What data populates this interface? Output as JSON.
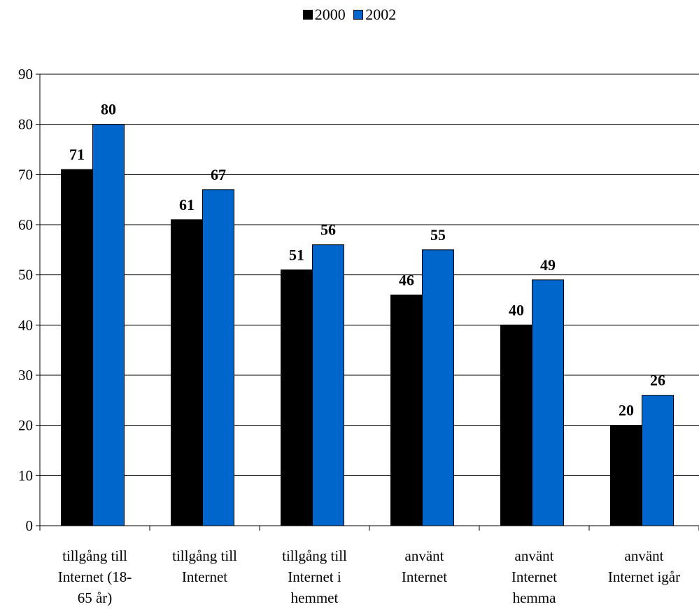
{
  "chart_data": {
    "type": "bar",
    "title": "",
    "xlabel": "",
    "ylabel": "",
    "ylim": [
      0,
      90
    ],
    "yticks": [
      0,
      10,
      20,
      30,
      40,
      50,
      60,
      70,
      80,
      90
    ],
    "grid": true,
    "legend_position": "top-center",
    "categories": [
      [
        "tillgång till",
        "Internet (18-",
        "65 år)"
      ],
      [
        "tillgång till",
        "Internet"
      ],
      [
        "tillgång till",
        "Internet i",
        "hemmet"
      ],
      [
        "använt",
        "Internet"
      ],
      [
        "använt",
        "Internet",
        "hemma"
      ],
      [
        "använt",
        "Internet igår"
      ]
    ],
    "series": [
      {
        "name": "2000",
        "color": "#000000",
        "values": [
          71,
          61,
          51,
          46,
          40,
          20
        ]
      },
      {
        "name": "2002",
        "color": "#0066CC",
        "values": [
          80,
          67,
          56,
          55,
          49,
          26
        ]
      }
    ]
  }
}
